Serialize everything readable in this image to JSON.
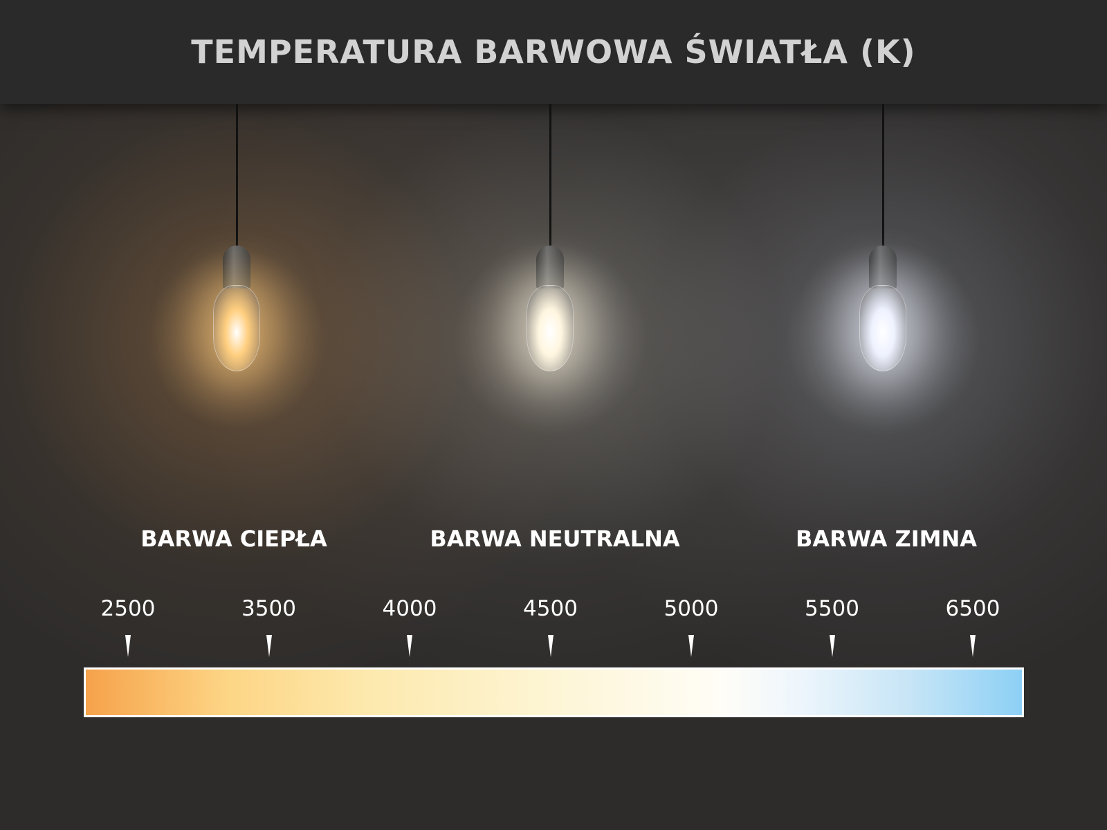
{
  "title": "TEMPERATURA BARWOWA ŚWIATŁA (K)",
  "categories": [
    "BARWA CIEPŁA",
    "BARWA NEUTRALNA",
    "BARWA ZIMNA"
  ],
  "bulb_colors": [
    "#ffcf80",
    "#fff6e0",
    "#eef2ff"
  ],
  "scale": {
    "ticks": [
      "2500",
      "3500",
      "4000",
      "4500",
      "5000",
      "5500",
      "6500"
    ],
    "gradient_colors": [
      "#f6a24a",
      "#fdd585",
      "#fffdf7",
      "#8dd0f5"
    ]
  }
}
